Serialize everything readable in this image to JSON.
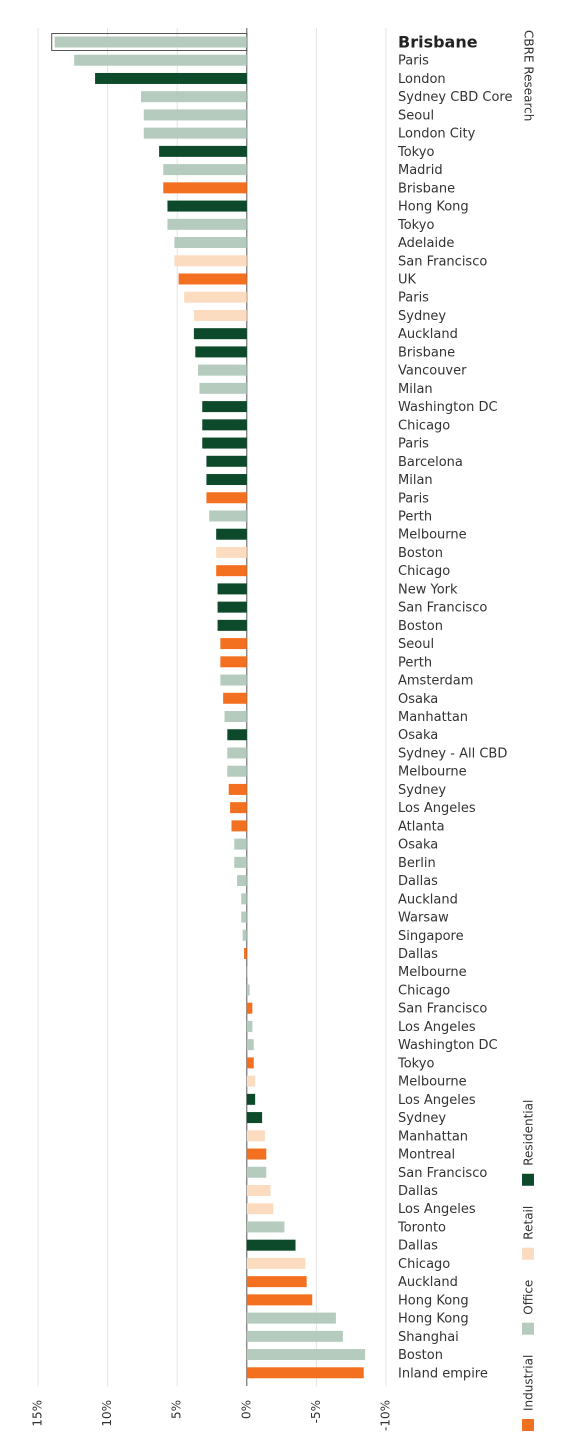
{
  "chart_data": {
    "type": "bar",
    "orientation": "horizontal",
    "source": "CBRE Research",
    "categories": [
      "Brisbane",
      "Paris",
      "London",
      "Sydney CBD Core",
      "Seoul",
      "London City",
      "Tokyo",
      "Madrid",
      "Brisbane",
      "Hong Kong",
      "Tokyo",
      "Adelaide",
      "San Francisco",
      "UK",
      "Paris",
      "Sydney",
      "Auckland",
      "Brisbane",
      "Vancouver",
      "Milan",
      "Washington DC",
      "Chicago",
      "Paris",
      "Barcelona",
      "Milan",
      "Paris",
      "Perth",
      "Melbourne",
      "Boston",
      "Chicago",
      "New York",
      "San Francisco",
      "Boston",
      "Seoul",
      "Perth",
      "Amsterdam",
      "Osaka",
      "Manhattan",
      "Osaka",
      "Sydney - All CBD",
      "Melbourne",
      "Sydney",
      "Los Angeles",
      "Atlanta",
      "Osaka",
      "Berlin",
      "Dallas",
      "Auckland",
      "Warsaw",
      "Singapore",
      "Dallas",
      "Melbourne",
      "Chicago",
      "San Francisco",
      "Los Angeles",
      "Washington DC",
      "Tokyo",
      "Melbourne",
      "Los Angeles",
      "Sydney",
      "Manhattan",
      "Montreal",
      "San Francisco",
      "Dallas",
      "Los Angeles",
      "Toronto",
      "Dallas",
      "Chicago",
      "Auckland",
      "Hong Kong",
      "Hong Kong",
      "Shanghai",
      "Boston",
      "Inland empire"
    ],
    "series": [
      {
        "name": "Residential",
        "color": "#0d4a2b",
        "values": [
          null,
          null,
          10.9,
          null,
          null,
          null,
          6.3,
          null,
          null,
          5.7,
          null,
          null,
          null,
          null,
          null,
          null,
          3.8,
          3.7,
          null,
          null,
          3.2,
          3.2,
          3.2,
          2.9,
          2.9,
          null,
          null,
          2.2,
          null,
          null,
          2.1,
          2.1,
          2.1,
          null,
          null,
          null,
          null,
          null,
          1.4,
          null,
          null,
          null,
          null,
          null,
          null,
          null,
          null,
          null,
          null,
          null,
          null,
          null,
          null,
          null,
          null,
          null,
          null,
          null,
          -0.6,
          -1.1,
          null,
          null,
          null,
          null,
          null,
          null,
          -3.5,
          null,
          null,
          null,
          null,
          null,
          null,
          null
        ]
      },
      {
        "name": "Retail",
        "color": "#fcdcc0",
        "values": [
          null,
          null,
          null,
          null,
          null,
          null,
          null,
          null,
          null,
          null,
          null,
          null,
          5.2,
          null,
          4.5,
          3.8,
          null,
          null,
          null,
          null,
          null,
          null,
          null,
          null,
          null,
          null,
          null,
          null,
          2.2,
          null,
          null,
          null,
          null,
          null,
          null,
          null,
          null,
          null,
          null,
          null,
          null,
          null,
          null,
          null,
          null,
          null,
          null,
          null,
          null,
          null,
          null,
          null,
          null,
          null,
          null,
          null,
          null,
          -0.6,
          null,
          null,
          -1.3,
          null,
          null,
          -1.7,
          -1.9,
          null,
          null,
          -4.2,
          null,
          null,
          null,
          null,
          null,
          null
        ]
      },
      {
        "name": "Office",
        "color": "#b4cbbd",
        "values": [
          13.8,
          12.4,
          null,
          7.6,
          7.4,
          7.4,
          null,
          6.0,
          null,
          null,
          5.7,
          5.2,
          null,
          null,
          null,
          null,
          null,
          null,
          3.5,
          3.4,
          null,
          null,
          null,
          null,
          null,
          null,
          2.7,
          null,
          null,
          null,
          null,
          null,
          null,
          null,
          null,
          1.9,
          null,
          1.6,
          null,
          1.4,
          1.4,
          null,
          null,
          null,
          0.9,
          0.9,
          0.7,
          0.4,
          0.4,
          0.3,
          null,
          0.0,
          -0.2,
          null,
          -0.4,
          -0.5,
          null,
          null,
          null,
          null,
          null,
          null,
          -1.4,
          null,
          null,
          -2.7,
          null,
          null,
          null,
          null,
          -6.4,
          -6.9,
          -8.5,
          null
        ]
      },
      {
        "name": "Industrial",
        "color": "#f37021",
        "values": [
          null,
          null,
          null,
          null,
          null,
          null,
          null,
          null,
          6.0,
          null,
          null,
          null,
          null,
          4.9,
          null,
          null,
          null,
          null,
          null,
          null,
          null,
          null,
          null,
          null,
          null,
          2.9,
          null,
          null,
          null,
          2.2,
          null,
          null,
          null,
          1.9,
          1.9,
          null,
          1.7,
          null,
          null,
          null,
          null,
          1.3,
          1.2,
          1.1,
          null,
          null,
          null,
          null,
          null,
          null,
          0.2,
          null,
          null,
          -0.4,
          null,
          null,
          -0.5,
          null,
          null,
          null,
          null,
          -1.4,
          null,
          null,
          null,
          null,
          null,
          null,
          -4.3,
          -4.7,
          null,
          null,
          null,
          -8.4
        ]
      }
    ],
    "highlight_index": 0,
    "xlim": [
      15,
      -10
    ],
    "xticks": [
      {
        "value": 15,
        "label": "15%"
      },
      {
        "value": 10,
        "label": "10%"
      },
      {
        "value": 5,
        "label": "5%"
      },
      {
        "value": 0,
        "label": "0%"
      },
      {
        "value": -5,
        "label": "-5%"
      },
      {
        "value": -10,
        "label": "-10%"
      }
    ],
    "grid": true
  }
}
